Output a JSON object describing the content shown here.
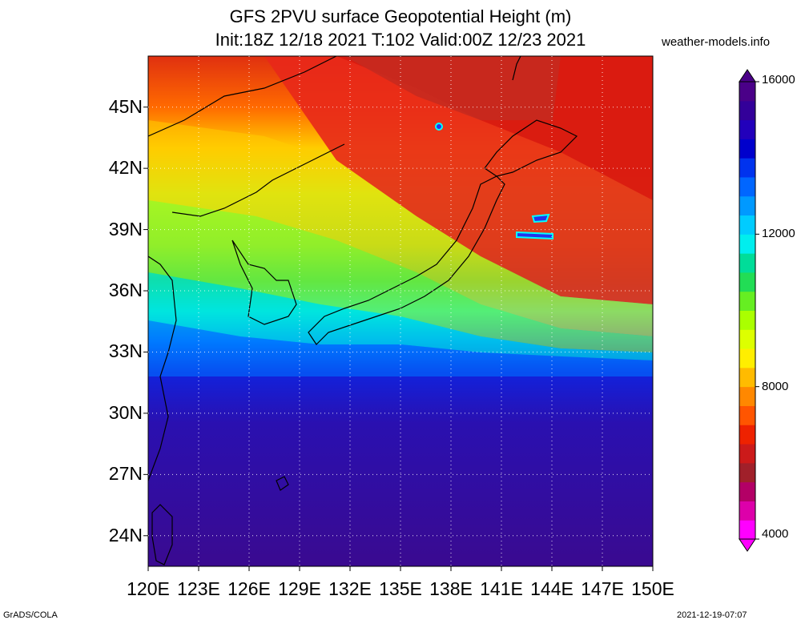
{
  "header": {
    "title_line1": "GFS 2PVU surface Geopotential Height (m)",
    "title_line2": "Init:18Z 12/18 2021 T:102 Valid:00Z 12/23 2021",
    "site": "weather-models.info"
  },
  "map": {
    "region": "Japan / East Asia",
    "lat_labels": [
      "45N",
      "42N",
      "39N",
      "36N",
      "33N",
      "30N",
      "27N",
      "24N"
    ],
    "lon_labels": [
      "120E",
      "123E",
      "126E",
      "129E",
      "132E",
      "135E",
      "138E",
      "141E",
      "144E",
      "147E",
      "150E"
    ],
    "lat_values": [
      45,
      42,
      39,
      36,
      33,
      30,
      27,
      24
    ],
    "lon_values": [
      120,
      123,
      126,
      129,
      132,
      135,
      138,
      141,
      144,
      147,
      150
    ],
    "lat_range": [
      22.5,
      47.5
    ],
    "lon_range": [
      120,
      150
    ],
    "grid": "dotted"
  },
  "colorbar": {
    "labels": [
      "16000",
      "12000",
      "8000",
      "4000"
    ],
    "values": [
      16000,
      12000,
      8000,
      4000
    ],
    "min": 4000,
    "max": 16000,
    "colors": [
      "#ff00ff",
      "#dd00aa",
      "#b30066",
      "#a0202a",
      "#cc1a1a",
      "#ee2200",
      "#ff5500",
      "#ff8800",
      "#ffbb00",
      "#ffee00",
      "#ddff00",
      "#aaff00",
      "#66ee22",
      "#22dd55",
      "#00dd99",
      "#00eeee",
      "#00ccff",
      "#0099ff",
      "#0066ff",
      "#0033ee",
      "#0000cc",
      "#2200bb",
      "#330099",
      "#4a0088"
    ]
  },
  "footer": {
    "credit": "GrADS/COLA",
    "timestamp": "2021-12-19-07:07"
  }
}
